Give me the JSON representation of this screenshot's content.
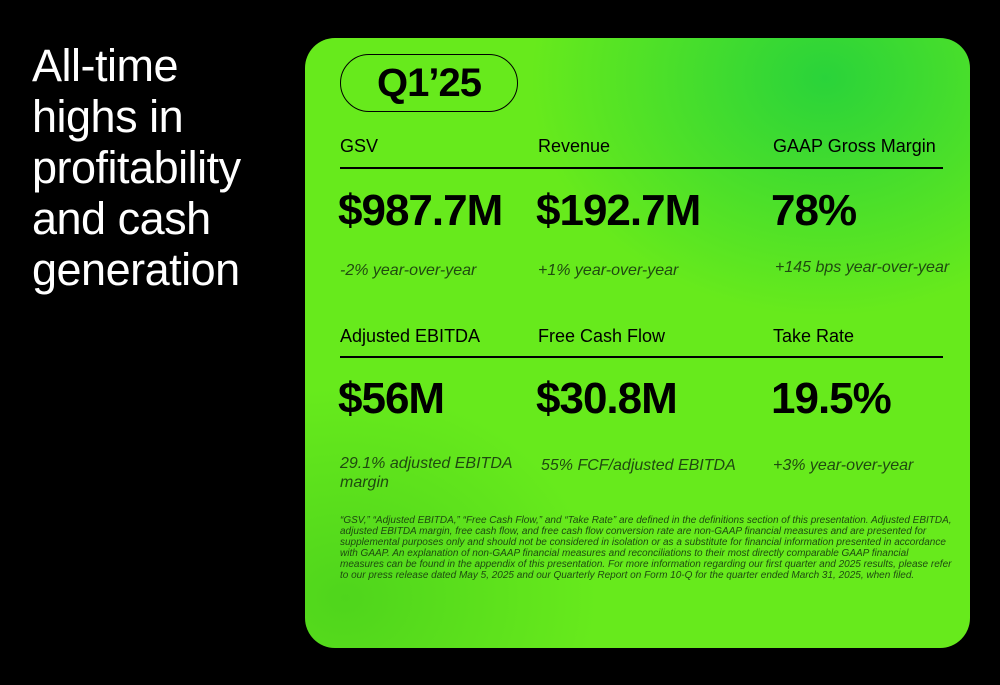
{
  "headline": "All-time highs in profitability and cash generation",
  "card": {
    "quarter": "Q1’25",
    "metrics": [
      {
        "label": "GSV",
        "value": "$987.7M",
        "sub": "-2% year-over-year"
      },
      {
        "label": "Revenue",
        "value": "$192.7M",
        "sub": "+1% year-over-year"
      },
      {
        "label": "GAAP Gross Margin",
        "value": "78%",
        "sub": "+145 bps year-over-year"
      },
      {
        "label": "Adjusted EBITDA",
        "value": "$56M",
        "sub": "29.1% adjusted EBITDA margin"
      },
      {
        "label": "Free Cash Flow",
        "value": "$30.8M",
        "sub": "55% FCF/adjusted EBITDA"
      },
      {
        "label": "Take Rate",
        "value": "19.5%",
        "sub": "+3% year-over-year"
      }
    ],
    "footnote": "“GSV,” “Adjusted EBITDA,” “Free Cash Flow,” and “Take Rate” are defined in the definitions section of this presentation. Adjusted EBITDA, adjusted EBITDA margin, free cash flow, and free cash flow conversion rate are non-GAAP financial measures and are presented for supplemental purposes only and should not be considered in isolation or as a substitute for financial information presented in accordance with GAAP. An explanation of non-GAAP financial measures and reconciliations to their most directly comparable GAAP financial measures can be found in the appendix of this presentation. For more information regarding our first quarter and 2025 results, please refer to our press release dated May 5, 2025 and our Quarterly Report on Form 10-Q for the quarter ended March 31, 2025, when filed."
  }
}
